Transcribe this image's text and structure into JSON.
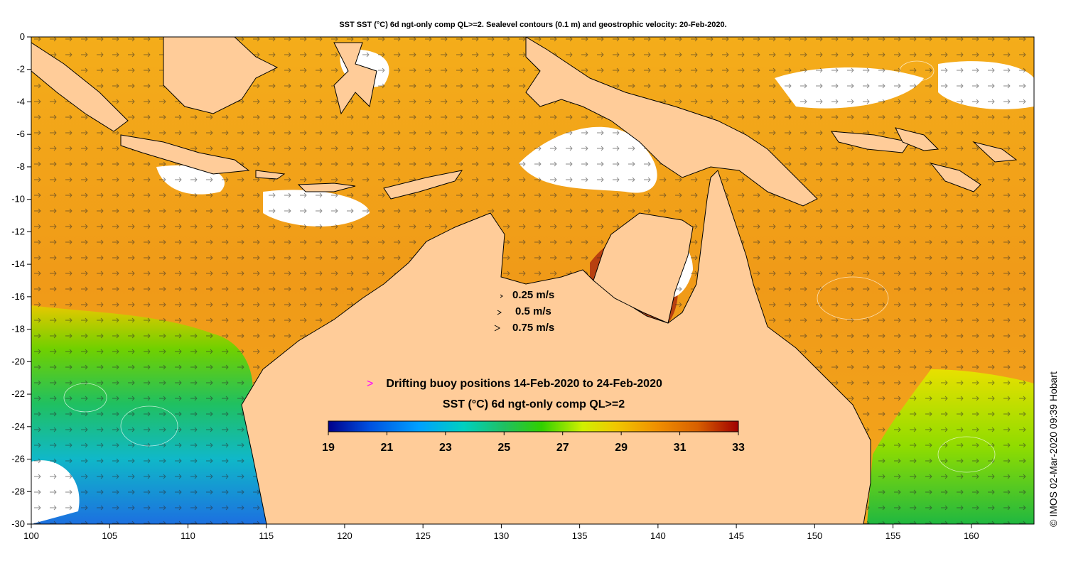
{
  "title": "SST SST (°C) 6d ngt-only comp QL>=2. Sealevel contours (0.1 m) and geostrophic velocity: 20-Feb-2020.",
  "copyright": "©  IMOS 02-Mar-2020 09:39 Hobart",
  "axes": {
    "x_ticks": [
      "100",
      "105",
      "110",
      "115",
      "120",
      "125",
      "130",
      "135",
      "140",
      "145",
      "150",
      "155",
      "160"
    ],
    "y_ticks": [
      "0",
      "-2",
      "-4",
      "-6",
      "-8",
      "-10",
      "-12",
      "-14",
      "-16",
      "-18",
      "-20",
      "-22",
      "-24",
      "-26",
      "-28",
      "-30"
    ],
    "lon_range": [
      100,
      164
    ],
    "lat_range": [
      -30,
      0
    ]
  },
  "velocity_legend": [
    "0.25 m/s",
    "0.5 m/s",
    "0.75 m/s"
  ],
  "buoy_legend": {
    "marker": ">",
    "text": "Drifting buoy positions 14-Feb-2020 to 24-Feb-2020",
    "marker_color": "#ff00ff"
  },
  "colorbar": {
    "title": "SST (°C) 6d ngt-only comp QL>=2",
    "tick_labels": [
      "19",
      "21",
      "23",
      "25",
      "27",
      "29",
      "31",
      "33"
    ],
    "min": 19,
    "max": 33,
    "colors": [
      "#00008b",
      "#0050e0",
      "#00a0ff",
      "#00d0c0",
      "#20c060",
      "#30d000",
      "#d0f000",
      "#f0c800",
      "#f09000",
      "#d86000",
      "#a00000"
    ]
  },
  "colors": {
    "land": "#ffcc99",
    "ocean_base": "#f2a31a",
    "cloud_gap": "#ffffff"
  }
}
